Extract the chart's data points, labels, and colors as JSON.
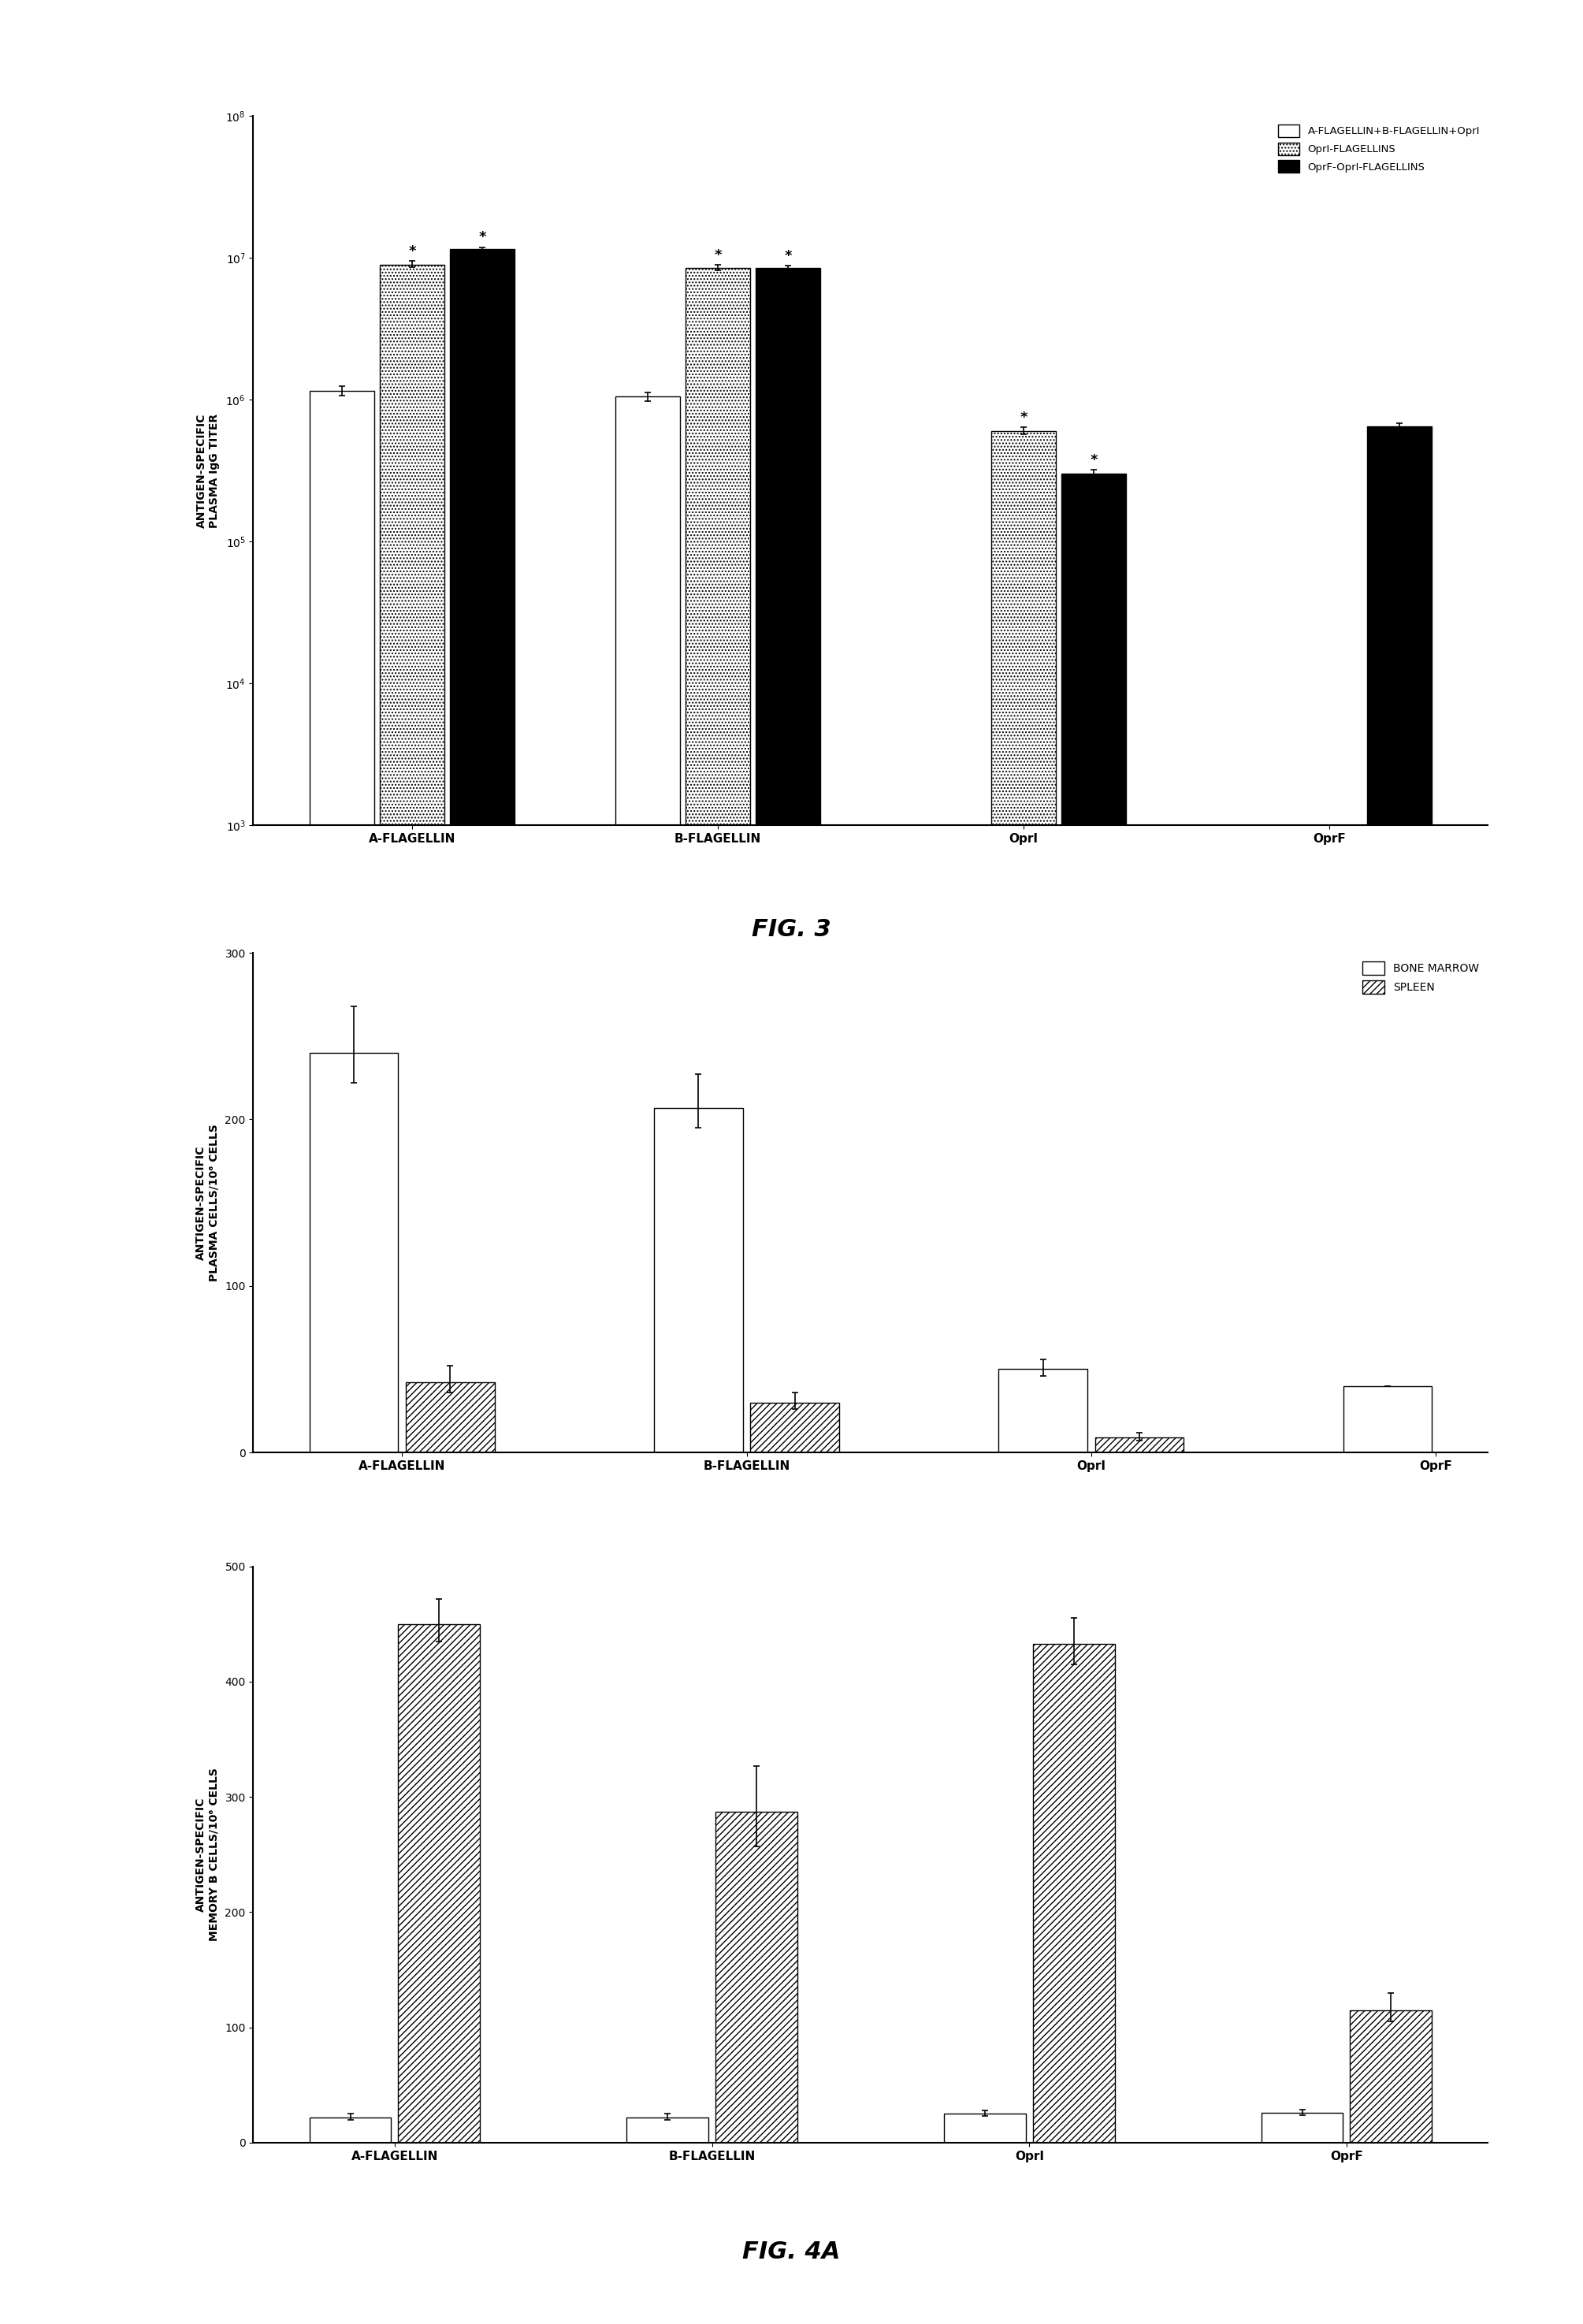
{
  "fig3": {
    "fig_label": "FIG. 3",
    "ylabel": "ANTIGEN-SPECIFIC\nPLASMA IgG TITER",
    "categories": [
      "A-FLAGELLIN",
      "B-FLAGELLIN",
      "OprI",
      "OprF"
    ],
    "series": [
      {
        "name": "A-FLAGELLIN+B-FLAGELLIN+OprI",
        "color": "white",
        "hatch": "",
        "values": [
          1150000.0,
          1050000.0,
          null,
          null
        ],
        "errors_lo": [
          80000.0,
          70000.0,
          null,
          null
        ],
        "errors_hi": [
          100000.0,
          80000.0,
          null,
          null
        ],
        "star": [
          false,
          false,
          false,
          false
        ]
      },
      {
        "name": "OprI-FLAGELLINS",
        "color": "white",
        "hatch": "....",
        "values": [
          9000000.0,
          8500000.0,
          600000.0,
          null
        ],
        "errors_lo": [
          400000.0,
          300000.0,
          30000.0,
          null
        ],
        "errors_hi": [
          500000.0,
          400000.0,
          40000.0,
          null
        ],
        "star": [
          true,
          true,
          true,
          false
        ]
      },
      {
        "name": "OprF-OprI-FLAGELLINS",
        "color": "black",
        "hatch": "",
        "values": [
          11500000.0,
          8500000.0,
          300000.0,
          650000.0
        ],
        "errors_lo": [
          300000.0,
          200000.0,
          15000.0,
          20000.0
        ],
        "errors_hi": [
          400000.0,
          300000.0,
          20000.0,
          30000.0
        ],
        "star": [
          true,
          true,
          true,
          false
        ]
      }
    ],
    "ylim_log": [
      1000.0,
      100000000.0
    ],
    "yticks_log": [
      1000.0,
      10000.0,
      100000.0,
      1000000.0,
      10000000.0,
      100000000.0
    ]
  },
  "fig4a_top": {
    "ylabel": "ANTIGEN-SPECIFIC\nPLASMA CELLS/10⁶ CELLS",
    "categories": [
      "A-FLAGELLIN",
      "B-FLAGELLIN",
      "OprI",
      "OprF"
    ],
    "series": [
      {
        "name": "BONE MARROW",
        "color": "white",
        "hatch": "",
        "values": [
          240,
          207,
          50,
          40
        ],
        "errors_lo": [
          18,
          12,
          4,
          0
        ],
        "errors_hi": [
          28,
          20,
          6,
          0
        ]
      },
      {
        "name": "SPLEEN",
        "color": "white",
        "hatch": "////",
        "values": [
          42,
          30,
          9,
          null
        ],
        "errors_lo": [
          6,
          4,
          2,
          null
        ],
        "errors_hi": [
          10,
          6,
          3,
          null
        ]
      }
    ],
    "ylim": [
      0,
      300
    ],
    "yticks": [
      0,
      100,
      200,
      300
    ]
  },
  "fig4a_bottom": {
    "fig_label": "FIG. 4A",
    "ylabel": "ANTIGEN-SPECIFIC\nMEMORY B CELLS/10⁶ CELLS",
    "categories": [
      "A-FLAGELLIN",
      "B-FLAGELLIN",
      "OprI",
      "OprF"
    ],
    "series": [
      {
        "name": "BONE MARROW",
        "color": "white",
        "hatch": "",
        "values": [
          22,
          22,
          25,
          26
        ],
        "errors_lo": [
          2,
          2,
          2,
          2
        ],
        "errors_hi": [
          3,
          3,
          3,
          3
        ]
      },
      {
        "name": "SPLEEN",
        "color": "white",
        "hatch": "////",
        "values": [
          450,
          287,
          433,
          115
        ],
        "errors_lo": [
          15,
          30,
          18,
          10
        ],
        "errors_hi": [
          22,
          40,
          22,
          15
        ]
      }
    ],
    "ylim": [
      0,
      500
    ],
    "yticks": [
      0,
      100,
      200,
      300,
      400,
      500
    ]
  }
}
